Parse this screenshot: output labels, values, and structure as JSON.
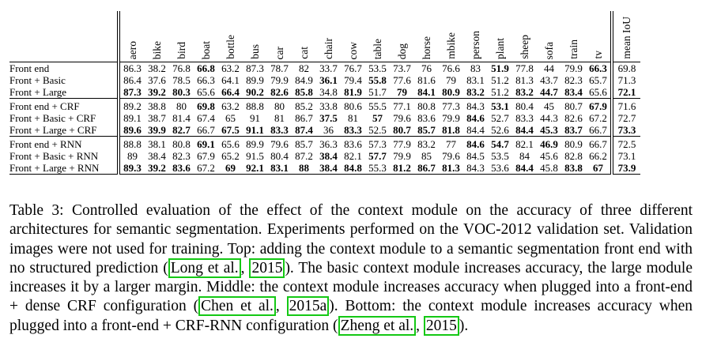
{
  "table": {
    "columns": [
      "aero",
      "bike",
      "bird",
      "boat",
      "bottle",
      "bus",
      "car",
      "cat",
      "chair",
      "cow",
      "table",
      "dog",
      "horse",
      "mbike",
      "person",
      "plant",
      "sheep",
      "sofa",
      "train",
      "tv",
      "mean IoU"
    ],
    "groups": [
      [
        {
          "method": "Front end",
          "values": [
            "86.3",
            "38.2",
            "76.8",
            "66.8",
            "63.2",
            "87.3",
            "78.7",
            "82",
            "33.7",
            "76.7",
            "53.5",
            "73.7",
            "76",
            "76.6",
            "83",
            "51.9",
            "77.8",
            "44",
            "79.9",
            "66.3",
            "69.8"
          ],
          "bold": [
            3,
            15,
            19
          ]
        },
        {
          "method": "Front + Basic",
          "values": [
            "86.4",
            "37.6",
            "78.5",
            "66.3",
            "64.1",
            "89.9",
            "79.9",
            "84.9",
            "36.1",
            "79.4",
            "55.8",
            "77.6",
            "81.6",
            "79",
            "83.1",
            "51.2",
            "81.3",
            "43.7",
            "82.3",
            "65.7",
            "71.3"
          ],
          "bold": [
            8,
            10
          ]
        },
        {
          "method": "Front + Large",
          "values": [
            "87.3",
            "39.2",
            "80.3",
            "65.6",
            "66.4",
            "90.2",
            "82.6",
            "85.8",
            "34.8",
            "81.9",
            "51.7",
            "79",
            "84.1",
            "80.9",
            "83.2",
            "51.2",
            "83.2",
            "44.7",
            "83.4",
            "65.6",
            "72.1"
          ],
          "bold": [
            0,
            1,
            2,
            4,
            5,
            6,
            7,
            9,
            11,
            12,
            13,
            14,
            16,
            17,
            18,
            20
          ]
        }
      ],
      [
        {
          "method": "Front end + CRF",
          "values": [
            "89.2",
            "38.8",
            "80",
            "69.8",
            "63.2",
            "88.8",
            "80",
            "85.2",
            "33.8",
            "80.6",
            "55.5",
            "77.1",
            "80.8",
            "77.3",
            "84.3",
            "53.1",
            "80.4",
            "45",
            "80.7",
            "67.9",
            "71.6"
          ],
          "bold": [
            3,
            15,
            19
          ]
        },
        {
          "method": "Front + Basic + CRF",
          "values": [
            "89.1",
            "38.7",
            "81.4",
            "67.4",
            "65",
            "91",
            "81",
            "86.7",
            "37.5",
            "81",
            "57",
            "79.6",
            "83.6",
            "79.9",
            "84.6",
            "52.7",
            "83.3",
            "44.3",
            "82.6",
            "67.2",
            "72.7"
          ],
          "bold": [
            8,
            10,
            14
          ]
        },
        {
          "method": "Front + Large + CRF",
          "values": [
            "89.6",
            "39.9",
            "82.7",
            "66.7",
            "67.5",
            "91.1",
            "83.3",
            "87.4",
            "36",
            "83.3",
            "52.5",
            "80.7",
            "85.7",
            "81.8",
            "84.4",
            "52.6",
            "84.4",
            "45.3",
            "83.7",
            "66.7",
            "73.3"
          ],
          "bold": [
            0,
            1,
            2,
            4,
            5,
            6,
            7,
            9,
            11,
            12,
            13,
            16,
            17,
            18,
            20
          ]
        }
      ],
      [
        {
          "method": "Front end + RNN",
          "values": [
            "88.8",
            "38.1",
            "80.8",
            "69.1",
            "65.6",
            "89.9",
            "79.6",
            "85.7",
            "36.3",
            "83.6",
            "57.3",
            "77.9",
            "83.2",
            "77",
            "84.6",
            "54.7",
            "82.1",
            "46.9",
            "80.9",
            "66.7",
            "72.5"
          ],
          "bold": [
            3,
            14,
            15,
            17
          ]
        },
        {
          "method": "Front + Basic + RNN",
          "values": [
            "89",
            "38.4",
            "82.3",
            "67.9",
            "65.2",
            "91.5",
            "80.4",
            "87.2",
            "38.4",
            "82.1",
            "57.7",
            "79.9",
            "85",
            "79.6",
            "84.5",
            "53.5",
            "84",
            "45.6",
            "82.8",
            "66.2",
            "73.1"
          ],
          "bold": [
            8,
            10
          ]
        },
        {
          "method": "Front + Large + RNN",
          "values": [
            "89.3",
            "39.2",
            "83.6",
            "67.2",
            "69",
            "92.1",
            "83.1",
            "88",
            "38.4",
            "84.8",
            "55.3",
            "81.2",
            "86.7",
            "81.3",
            "84.3",
            "53.6",
            "84.4",
            "45.8",
            "83.8",
            "67",
            "73.9"
          ],
          "bold": [
            0,
            1,
            2,
            4,
            5,
            6,
            7,
            8,
            9,
            11,
            12,
            13,
            16,
            18,
            19,
            20
          ]
        }
      ]
    ]
  },
  "caption": {
    "part1": "Table 3: Controlled evaluation of the effect of the context module on the accuracy of three different architectures for semantic segmentation. Experiments performed on the VOC-2012 validation set. Validation images were not used for training. Top: adding the context module to a semantic segmentation front end with no structured prediction (",
    "cite1_a": "Long et al.",
    "cite1_sep": ", ",
    "cite1_b": "2015",
    "part2": "). The basic context module increases accuracy, the large module increases it by a larger margin. Middle: the context module increases accuracy when plugged into a front-end + dense CRF configuration (",
    "cite2_a": "Chen et al.",
    "cite2_sep": ", ",
    "cite2_b": "2015a",
    "part3": "). Bottom: the context module increases accuracy when plugged into a front-end + CRF-RNN configuration (",
    "cite3_a": "Zheng et al.",
    "cite3_sep": ", ",
    "cite3_b": "2015",
    "part4": ").",
    "cite_border_color": "#14c814"
  }
}
